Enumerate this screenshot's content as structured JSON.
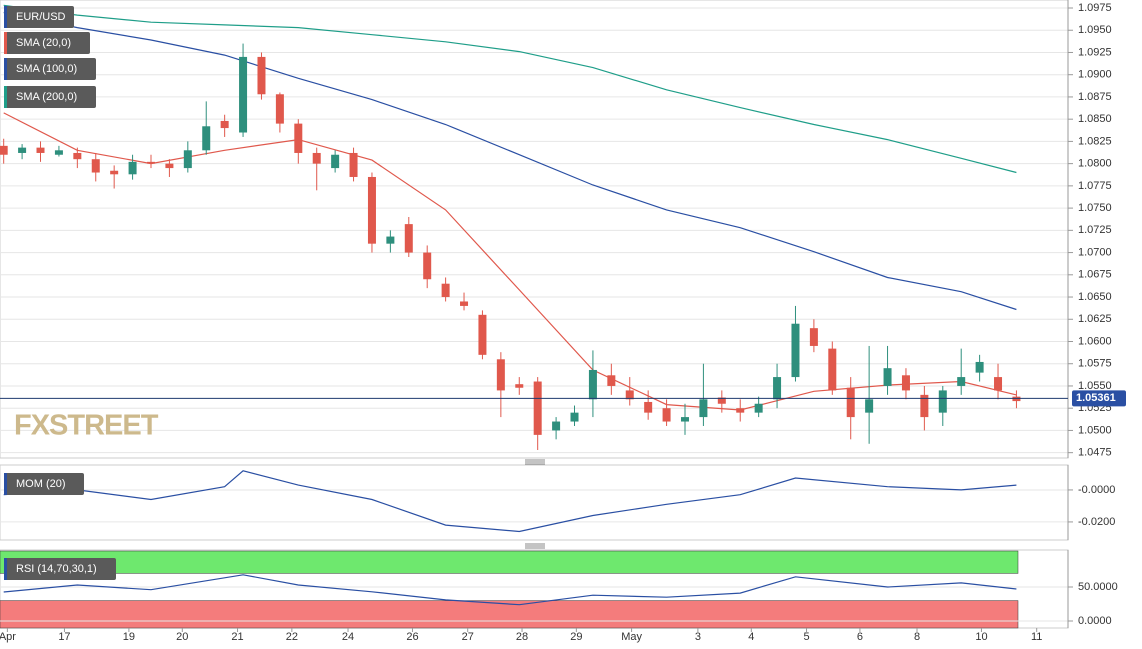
{
  "chart_data": [
    {
      "type": "candlestick",
      "title": "EUR/USD",
      "watermark": "FXSTREET",
      "up_color": "#2e8f7d",
      "down_color": "#e0584c",
      "open": [
        1.082,
        1.0812,
        1.0818,
        1.081,
        1.0812,
        1.0805,
        1.0792,
        1.0788,
        1.0802,
        1.08,
        1.0795,
        1.0815,
        1.0848,
        1.0835,
        1.092,
        1.0878,
        1.0845,
        1.0812,
        1.0795,
        1.0812,
        1.0785,
        1.071,
        1.0732,
        1.07,
        1.0665,
        1.0645,
        1.063,
        1.058,
        1.0552,
        1.0555,
        1.05,
        1.051,
        1.0535,
        1.0562,
        1.0545,
        1.0532,
        1.0525,
        1.051,
        1.0515,
        1.0537,
        1.0525,
        1.052,
        1.0535,
        1.056,
        1.0615,
        1.0592,
        1.0548,
        1.052,
        1.055,
        1.0562,
        1.054,
        1.052,
        1.055,
        1.0565,
        1.056,
        1.0538
      ],
      "high": [
        1.0828,
        1.0822,
        1.0825,
        1.082,
        1.0818,
        1.0812,
        1.0798,
        1.081,
        1.081,
        1.0805,
        1.0825,
        1.087,
        1.0855,
        1.0935,
        1.0925,
        1.088,
        1.085,
        1.0818,
        1.0815,
        1.0818,
        1.079,
        1.0725,
        1.074,
        1.0708,
        1.0672,
        1.0655,
        1.0635,
        1.0588,
        1.056,
        1.056,
        1.0515,
        1.0528,
        1.059,
        1.0575,
        1.056,
        1.0545,
        1.0535,
        1.053,
        1.0575,
        1.0545,
        1.0535,
        1.0538,
        1.0575,
        1.064,
        1.0625,
        1.06,
        1.056,
        1.0595,
        1.0595,
        1.057,
        1.055,
        1.055,
        1.0592,
        1.0585,
        1.0575,
        1.0545
      ],
      "low": [
        1.08,
        1.0805,
        1.0802,
        1.0808,
        1.0795,
        1.078,
        1.0772,
        1.0782,
        1.0795,
        1.0785,
        1.079,
        1.081,
        1.083,
        1.083,
        1.0872,
        1.0835,
        1.08,
        1.077,
        1.079,
        1.078,
        1.07,
        1.07,
        1.0695,
        1.066,
        1.0645,
        1.0635,
        1.058,
        1.0515,
        1.054,
        1.0478,
        1.049,
        1.0505,
        1.0515,
        1.054,
        1.0528,
        1.0512,
        1.0505,
        1.0495,
        1.0505,
        1.052,
        1.051,
        1.0515,
        1.0525,
        1.0555,
        1.0588,
        1.054,
        1.049,
        1.0485,
        1.054,
        1.0535,
        1.05,
        1.0505,
        1.054,
        1.0555,
        1.0535,
        1.0525
      ],
      "close": [
        1.081,
        1.0818,
        1.0812,
        1.0815,
        1.0805,
        1.079,
        1.0788,
        1.0802,
        1.08,
        1.0795,
        1.0815,
        1.0842,
        1.084,
        1.092,
        1.0878,
        1.0845,
        1.0812,
        1.08,
        1.081,
        1.0785,
        1.071,
        1.0718,
        1.07,
        1.067,
        1.065,
        1.064,
        1.0585,
        1.0545,
        1.0548,
        1.0495,
        1.051,
        1.052,
        1.0568,
        1.055,
        1.0535,
        1.052,
        1.051,
        1.0515,
        1.0535,
        1.053,
        1.052,
        1.053,
        1.056,
        1.062,
        1.0595,
        1.0545,
        1.0515,
        1.0535,
        1.057,
        1.0545,
        1.0515,
        1.0545,
        1.056,
        1.0577,
        1.0545,
        1.0533
      ],
      "series": [
        {
          "name": "SMA (20,0)",
          "color": "#e0584c",
          "x": [
            0,
            4,
            8,
            12,
            16,
            20,
            24,
            28,
            32,
            36,
            40,
            44,
            48,
            52,
            55
          ],
          "values": [
            1.0857,
            1.0815,
            1.08,
            1.0815,
            1.0827,
            1.0804,
            1.0748,
            1.0658,
            1.0568,
            1.0529,
            1.0523,
            1.0544,
            1.0551,
            1.0555,
            1.054
          ]
        },
        {
          "name": "SMA (100,0)",
          "color": "#2a4fa3",
          "x": [
            0,
            4,
            8,
            12,
            16,
            20,
            24,
            28,
            32,
            36,
            40,
            44,
            48,
            52,
            55
          ],
          "values": [
            1.097,
            1.0953,
            1.0939,
            1.0922,
            1.0896,
            1.0872,
            1.0844,
            1.081,
            1.0776,
            1.0748,
            1.0728,
            1.0701,
            1.0672,
            1.0656,
            1.0636
          ]
        },
        {
          "name": "SMA (200,0)",
          "color": "#1f9e89",
          "x": [
            0,
            4,
            8,
            12,
            16,
            20,
            24,
            28,
            32,
            36,
            40,
            44,
            48,
            52,
            55
          ],
          "values": [
            1.0978,
            1.0967,
            1.0959,
            1.0956,
            1.0953,
            1.0945,
            1.0937,
            1.0926,
            1.0908,
            1.0883,
            1.0863,
            1.0844,
            1.0827,
            1.0806,
            1.079
          ]
        }
      ],
      "last_price": 1.05361,
      "xlim": [
        -0.2,
        57.8
      ],
      "ylim": [
        1.0469,
        1.0984
      ],
      "yticks": [
        1.0475,
        {
          "value": 1.05,
          "label": "1.0500"
        },
        1.0525,
        {
          "value": 1.055,
          "label": "1.0550"
        },
        1.0575,
        {
          "value": 1.06,
          "label": "1.0600"
        },
        1.0625,
        {
          "value": 1.065,
          "label": "1.0650"
        },
        1.0675,
        {
          "value": 1.07,
          "label": "1.0700"
        },
        1.0725,
        {
          "value": 1.075,
          "label": "1.0750"
        },
        1.0775,
        {
          "value": 1.08,
          "label": "1.0800"
        },
        1.0825,
        {
          "value": 1.085,
          "label": "1.0850"
        },
        1.0875,
        {
          "value": 1.09,
          "label": "1.0900"
        },
        1.0925,
        {
          "value": 1.095,
          "label": "1.0950"
        },
        1.0975
      ],
      "grid": true
    },
    {
      "type": "line",
      "title": "MOM (20)",
      "series": [
        {
          "name": "MOM (20)",
          "color": "#2a4fa3",
          "x": [
            0,
            4,
            8,
            12,
            13,
            16,
            20,
            24,
            28,
            32,
            36,
            40,
            43,
            48,
            52,
            55
          ],
          "values": [
            -0.003,
            0,
            -0.006,
            0.002,
            0.012,
            0.003,
            -0.006,
            -0.022,
            -0.026,
            -0.016,
            -0.009,
            -0.003,
            0.0075,
            0.002,
            0,
            0.003
          ]
        }
      ],
      "xlim": [
        -0.2,
        57.8
      ],
      "ylim": [
        -0.0313,
        0.0156
      ],
      "yticks": [
        {
          "value": 0,
          "label": "-0.0000"
        },
        {
          "value": -0.02,
          "label": "-0.0200"
        }
      ],
      "grid": true
    },
    {
      "type": "line",
      "title": "RSI (14,70,30,1)",
      "upper": 70,
      "lower": 30,
      "upper_color": "#6ee86e",
      "lower_color": "#f47c7c",
      "series": [
        {
          "name": "RSI (14,70,30,1)",
          "color": "#2a4fa3",
          "x": [
            0,
            4,
            8,
            13,
            16,
            20,
            24,
            28,
            32,
            36,
            40,
            43,
            48,
            52,
            55
          ],
          "values": [
            42.6,
            53,
            46,
            68,
            53,
            43,
            31,
            24,
            38,
            35,
            41,
            65,
            50,
            56,
            47
          ]
        }
      ],
      "xlim": [
        -0.2,
        57.8
      ],
      "ylim": [
        -10.3,
        104.4
      ],
      "yticks": [
        {
          "value": 0,
          "label": "0.0000"
        },
        {
          "value": 50,
          "label": "50.0000"
        }
      ],
      "xticks": [
        {
          "value": 0.2,
          "label": "Apr"
        },
        {
          "value": 3.3,
          "label": "17"
        },
        {
          "value": 6.8,
          "label": "19"
        },
        {
          "value": 9.7,
          "label": "20"
        },
        {
          "value": 12.7,
          "label": "21"
        },
        {
          "value": 15.65,
          "label": "22"
        },
        {
          "value": 18.7,
          "label": "24"
        },
        {
          "value": 22.2,
          "label": "26"
        },
        {
          "value": 25.2,
          "label": "27"
        },
        {
          "value": 28.15,
          "label": "28"
        },
        {
          "value": 31.1,
          "label": "29"
        },
        {
          "value": 34.1,
          "label": "May"
        },
        {
          "value": 37.7,
          "label": "3"
        },
        {
          "value": 40.6,
          "label": "4"
        },
        {
          "value": 43.6,
          "label": "5"
        },
        {
          "value": 46.5,
          "label": "6"
        },
        {
          "value": 49.6,
          "label": "8"
        },
        {
          "value": 53.1,
          "label": "10"
        },
        {
          "value": 56.1,
          "label": "11"
        }
      ],
      "grid": true
    }
  ]
}
